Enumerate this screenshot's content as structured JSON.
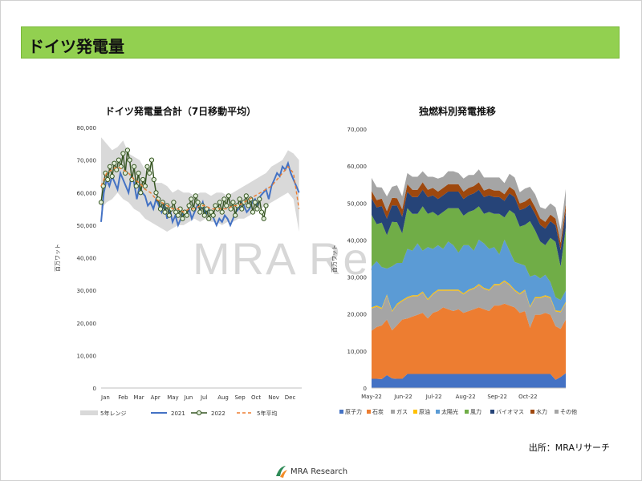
{
  "page": {
    "title": "ドイツ発電量"
  },
  "watermark": "MRA Research",
  "source": "出所：MRAリサーチ",
  "footer": {
    "brand": "MRA Research"
  },
  "colors": {
    "title_bar": "#92d050"
  },
  "chart_data": [
    {
      "type": "line",
      "title": "ドイツ発電量合計（7日移動平均）",
      "ylabel": "百万ワット",
      "ylim": [
        0,
        80000
      ],
      "yticks": [
        0,
        10000,
        20000,
        30000,
        40000,
        50000,
        60000,
        70000,
        80000
      ],
      "ytick_labels": [
        "0",
        "10,000",
        "20,000",
        "30,000",
        "40,000",
        "50,000",
        "60,000",
        "70,000",
        "80,000"
      ],
      "xlim": [
        0,
        365
      ],
      "xticks": [
        0,
        31,
        59,
        90,
        120,
        151,
        181,
        212,
        243,
        273,
        304,
        334
      ],
      "xtick_labels": [
        "Jan",
        "Feb",
        "Mar",
        "Apr",
        "May",
        "Jun",
        "Jul",
        "Aug",
        "Sep",
        "Oct",
        "Nov",
        "Dec"
      ],
      "legend": [
        "5年レンジ",
        "2021",
        "2022",
        "5年平均"
      ],
      "legend_position": "bottom",
      "range": {
        "name": "5年レンジ",
        "x": [
          0,
          10,
          20,
          30,
          40,
          50,
          60,
          70,
          80,
          90,
          100,
          110,
          120,
          130,
          140,
          150,
          160,
          170,
          180,
          190,
          200,
          210,
          220,
          230,
          240,
          250,
          260,
          270,
          280,
          290,
          300,
          310,
          320,
          330,
          340,
          350,
          360
        ],
        "low": [
          55000,
          57000,
          58000,
          60000,
          58000,
          57000,
          55000,
          54000,
          52000,
          51000,
          50000,
          49000,
          48000,
          49000,
          50000,
          50000,
          51000,
          52000,
          51000,
          52000,
          51000,
          51000,
          50000,
          51000,
          51000,
          52000,
          52000,
          53000,
          54000,
          55000,
          56000,
          57000,
          58000,
          59000,
          60000,
          58000,
          48000
        ],
        "high": [
          77000,
          75000,
          73000,
          74000,
          76000,
          72000,
          71000,
          70000,
          67000,
          65000,
          63000,
          63000,
          62000,
          60000,
          61000,
          60000,
          60000,
          59000,
          60000,
          60000,
          59000,
          60000,
          60000,
          59000,
          60000,
          61000,
          62000,
          63000,
          64000,
          65000,
          66000,
          68000,
          69000,
          70000,
          73000,
          72000,
          70000
        ]
      },
      "series": [
        {
          "name": "2021",
          "x": [
            0,
            5,
            10,
            15,
            20,
            25,
            30,
            35,
            40,
            45,
            50,
            55,
            60,
            65,
            70,
            75,
            80,
            85,
            90,
            95,
            100,
            105,
            110,
            115,
            120,
            125,
            130,
            135,
            140,
            145,
            150,
            155,
            160,
            165,
            170,
            175,
            180,
            185,
            190,
            195,
            200,
            205,
            210,
            215,
            220,
            225,
            230,
            235,
            240,
            245,
            250,
            255,
            260,
            265,
            270,
            275,
            280,
            285,
            290,
            295,
            300,
            305,
            310,
            315,
            320,
            325,
            330,
            335,
            340,
            345,
            350,
            355,
            360
          ],
          "values": [
            51000,
            60000,
            64000,
            62000,
            65000,
            63000,
            61000,
            66000,
            64000,
            62000,
            60000,
            65000,
            63000,
            58000,
            62000,
            60000,
            59000,
            56000,
            57000,
            55000,
            58000,
            56000,
            54000,
            57000,
            52000,
            55000,
            51000,
            53000,
            50000,
            52000,
            54000,
            53000,
            55000,
            52000,
            54000,
            56000,
            55000,
            57000,
            53000,
            55000,
            54000,
            52000,
            50000,
            52000,
            51000,
            53000,
            52000,
            50000,
            52000,
            54000,
            55000,
            57000,
            56000,
            54000,
            55000,
            57000,
            58000,
            56000,
            59000,
            60000,
            61000,
            58000,
            62000,
            64000,
            66000,
            65000,
            68000,
            67000,
            69000,
            66000,
            64000,
            62000,
            60000
          ]
        },
        {
          "name": "2022",
          "x": [
            0,
            4,
            8,
            12,
            16,
            20,
            24,
            28,
            32,
            36,
            40,
            44,
            48,
            52,
            56,
            60,
            64,
            68,
            72,
            76,
            80,
            84,
            88,
            92,
            96,
            100,
            104,
            108,
            112,
            116,
            120,
            124,
            128,
            132,
            136,
            140,
            144,
            148,
            152,
            156,
            160,
            164,
            168,
            172,
            176,
            180,
            184,
            188,
            192,
            196,
            200,
            204,
            208,
            212,
            216,
            220,
            224,
            228,
            232,
            236,
            240,
            244,
            248,
            252,
            256,
            260,
            264,
            268,
            272,
            276,
            280,
            284,
            288,
            292,
            296,
            300
          ],
          "values": [
            57000,
            62000,
            66000,
            64000,
            68000,
            65000,
            69000,
            67000,
            70000,
            68000,
            72000,
            66000,
            73000,
            70000,
            64000,
            68000,
            62000,
            66000,
            60000,
            64000,
            62000,
            68000,
            66000,
            70000,
            64000,
            60000,
            58000,
            55000,
            57000,
            54000,
            56000,
            53000,
            55000,
            57000,
            54000,
            53000,
            55000,
            52000,
            54000,
            53000,
            56000,
            58000,
            55000,
            59000,
            57000,
            54000,
            56000,
            53000,
            55000,
            52000,
            54000,
            53000,
            56000,
            55000,
            57000,
            54000,
            58000,
            56000,
            59000,
            55000,
            57000,
            53000,
            56000,
            58000,
            55000,
            57000,
            59000,
            56000,
            58000,
            54000,
            57000,
            55000,
            58000,
            54000,
            52000,
            56000
          ]
        },
        {
          "name": "5年平均",
          "x": [
            0,
            10,
            20,
            30,
            40,
            50,
            60,
            70,
            80,
            90,
            100,
            110,
            120,
            130,
            140,
            150,
            160,
            170,
            180,
            190,
            200,
            210,
            220,
            230,
            240,
            250,
            260,
            270,
            280,
            290,
            300,
            310,
            320,
            330,
            340,
            350,
            360
          ],
          "values": [
            62000,
            66000,
            67000,
            68000,
            67000,
            66000,
            64000,
            63000,
            61000,
            60000,
            58000,
            57000,
            56000,
            55000,
            55000,
            54000,
            55000,
            55000,
            56000,
            56000,
            55000,
            55000,
            55000,
            55000,
            56000,
            56000,
            57000,
            58000,
            59000,
            60000,
            61000,
            62000,
            64000,
            66000,
            68000,
            66000,
            55000
          ]
        }
      ]
    },
    {
      "type": "area",
      "title": "独燃料別発電推移",
      "ylabel": "百万ワット",
      "ylim": [
        0,
        70000
      ],
      "yticks": [
        0,
        10000,
        20000,
        30000,
        40000,
        50000,
        60000,
        70000
      ],
      "ytick_labels": [
        "0",
        "10,000",
        "20,000",
        "30,000",
        "40,000",
        "50,000",
        "60,000",
        "70,000"
      ],
      "x": [
        "2022-05-01",
        "2022-05-06",
        "2022-05-11",
        "2022-05-16",
        "2022-05-21",
        "2022-05-26",
        "2022-05-31",
        "2022-06-05",
        "2022-06-10",
        "2022-06-15",
        "2022-06-20",
        "2022-06-25",
        "2022-06-30",
        "2022-07-05",
        "2022-07-10",
        "2022-07-15",
        "2022-07-20",
        "2022-07-25",
        "2022-07-30",
        "2022-08-04",
        "2022-08-09",
        "2022-08-14",
        "2022-08-19",
        "2022-08-24",
        "2022-08-29",
        "2022-09-03",
        "2022-09-08",
        "2022-09-13",
        "2022-09-18",
        "2022-09-23",
        "2022-09-28",
        "2022-10-03",
        "2022-10-08",
        "2022-10-13",
        "2022-10-18",
        "2022-10-23",
        "2022-10-28",
        "2022-11-02",
        "2022-11-07"
      ],
      "xtick_labels": [
        "May-22",
        "Jun-22",
        "Jul-22",
        "Aug-22",
        "Sep-22",
        "Oct-22"
      ],
      "xtick_dates": [
        "2022-05-01",
        "2022-06-01",
        "2022-07-01",
        "2022-08-01",
        "2022-09-01",
        "2022-10-01"
      ],
      "legend": [
        "原子力",
        "石炭",
        "ガス",
        "原油",
        "太陽光",
        "風力",
        "バイオマス",
        "水力",
        "その他"
      ],
      "legend_position": "bottom",
      "series": [
        {
          "name": "原子力",
          "color": "#4472c4",
          "values": [
            2500,
            2500,
            2400,
            3500,
            2600,
            2500,
            2500,
            3800,
            3800,
            3800,
            3800,
            3800,
            3800,
            3800,
            3800,
            3800,
            3800,
            3800,
            3800,
            3800,
            3800,
            3800,
            3800,
            3800,
            3800,
            3800,
            3800,
            3800,
            3800,
            3800,
            3800,
            3800,
            3800,
            3800,
            3800,
            3800,
            2200,
            3000,
            4000
          ]
        },
        {
          "name": "石炭",
          "color": "#ed7d31",
          "values": [
            13000,
            14000,
            14500,
            15000,
            13000,
            14500,
            16000,
            15000,
            15500,
            16000,
            16500,
            15000,
            16500,
            17000,
            18000,
            17500,
            17000,
            17500,
            16500,
            17000,
            17500,
            18000,
            17500,
            17000,
            18500,
            18500,
            19000,
            18500,
            18000,
            16500,
            17000,
            12500,
            16000,
            16000,
            16500,
            16000,
            14500,
            13000,
            14500
          ]
        },
        {
          "name": "ガス",
          "color": "#a5a5a5",
          "values": [
            6000,
            5500,
            4500,
            6500,
            5000,
            5500,
            5000,
            5500,
            5500,
            5000,
            5500,
            5000,
            5000,
            5500,
            4500,
            5000,
            5500,
            5000,
            5000,
            5500,
            5500,
            6000,
            5500,
            5500,
            5500,
            5500,
            6000,
            5500,
            4500,
            5000,
            5500,
            5500,
            4500,
            4500,
            4500,
            4500,
            4000,
            4500,
            4500
          ]
        },
        {
          "name": "原油",
          "color": "#ffc000",
          "values": [
            300,
            300,
            300,
            300,
            300,
            300,
            300,
            300,
            300,
            300,
            300,
            300,
            300,
            300,
            300,
            300,
            300,
            300,
            300,
            300,
            300,
            300,
            300,
            300,
            300,
            300,
            300,
            300,
            300,
            300,
            300,
            300,
            300,
            300,
            300,
            300,
            300,
            300,
            300
          ]
        },
        {
          "name": "太陽光",
          "color": "#5b9bd5",
          "values": [
            11000,
            12000,
            11000,
            7000,
            12000,
            11000,
            10000,
            13000,
            12000,
            14000,
            11000,
            14000,
            12000,
            12000,
            11000,
            13000,
            12000,
            10000,
            13000,
            12000,
            10000,
            12000,
            12000,
            11000,
            10000,
            8000,
            11000,
            9000,
            7500,
            8000,
            6500,
            8000,
            6000,
            5000,
            5500,
            4000,
            3500,
            3000,
            3000
          ]
        },
        {
          "name": "風力",
          "color": "#70ad47",
          "values": [
            14000,
            10000,
            12000,
            9000,
            12000,
            11000,
            8000,
            11000,
            10000,
            8000,
            12000,
            9000,
            10000,
            8000,
            10000,
            9000,
            10000,
            12000,
            8000,
            9000,
            11000,
            9000,
            8000,
            10000,
            9000,
            11000,
            6000,
            11000,
            13000,
            10000,
            11000,
            15000,
            12000,
            10000,
            8000,
            12000,
            15000,
            9000,
            17000
          ]
        },
        {
          "name": "バイオマス",
          "color": "#264478",
          "values": [
            4500,
            4500,
            4500,
            4500,
            4500,
            4500,
            4500,
            4500,
            4500,
            4500,
            4500,
            4500,
            4500,
            4500,
            4500,
            4500,
            4500,
            4500,
            4500,
            4500,
            4500,
            4500,
            4500,
            4500,
            4500,
            4500,
            4500,
            4500,
            4500,
            4500,
            4500,
            4500,
            4500,
            4500,
            4500,
            4500,
            4500,
            4500,
            4500
          ]
        },
        {
          "name": "水力",
          "color": "#9e480e",
          "values": [
            2000,
            2000,
            2000,
            2000,
            2000,
            2000,
            2000,
            2000,
            2000,
            2000,
            2000,
            2000,
            2000,
            2000,
            2000,
            2000,
            2000,
            2000,
            2000,
            2000,
            2000,
            2000,
            1800,
            1800,
            1800,
            1800,
            1800,
            1800,
            1800,
            1800,
            1800,
            1800,
            1800,
            1800,
            1800,
            1800,
            1800,
            2000,
            2000
          ]
        },
        {
          "name": "その他",
          "color": "#a5a5a5",
          "values": [
            3500,
            3500,
            3000,
            4000,
            3000,
            3500,
            3500,
            3000,
            3500,
            3500,
            3000,
            3500,
            3000,
            3500,
            3000,
            3500,
            3500,
            3000,
            3500,
            3500,
            3000,
            3500,
            3500,
            3000,
            3500,
            3500,
            3000,
            3500,
            3500,
            3000,
            3500,
            3000,
            3500,
            3000,
            3500,
            3000,
            3000,
            3500,
            4000
          ]
        }
      ]
    }
  ]
}
